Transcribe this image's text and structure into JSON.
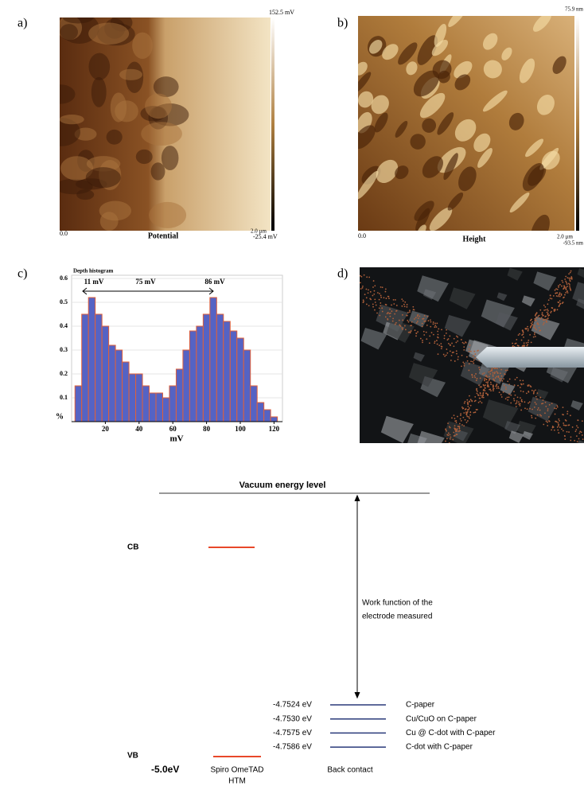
{
  "panels": {
    "a": {
      "label": "a)",
      "scale_max": "152.5 mV",
      "scale_min": "-25.4 mV",
      "x_start": "0.0",
      "x_end": "2.0 µm",
      "caption": "Potential"
    },
    "b": {
      "label": "b)",
      "scale_max": "75.9 nm",
      "scale_min": "-93.5 nm",
      "x_start": "0.0",
      "x_end": "2.0 µm",
      "caption": "Height"
    },
    "c": {
      "label": "c)"
    },
    "d": {
      "label": "d)"
    }
  },
  "chart_data": {
    "type": "histogram",
    "title": "Depth histogram",
    "x_label": "mV",
    "y_label": "%",
    "annotations": [
      "11 mV",
      "75 mV",
      "86 mV"
    ],
    "bins": [
      2,
      6,
      10,
      14,
      18,
      22,
      26,
      30,
      34,
      38,
      42,
      46,
      50,
      54,
      58,
      62,
      66,
      70,
      74,
      78,
      82,
      86,
      90,
      94,
      98,
      102,
      106,
      110,
      114,
      118,
      122
    ],
    "values": [
      0.15,
      0.45,
      0.52,
      0.45,
      0.4,
      0.32,
      0.3,
      0.25,
      0.2,
      0.2,
      0.15,
      0.12,
      0.12,
      0.1,
      0.15,
      0.22,
      0.3,
      0.38,
      0.4,
      0.45,
      0.52,
      0.45,
      0.42,
      0.38,
      0.35,
      0.3,
      0.15,
      0.08,
      0.05,
      0.02
    ],
    "color": "#5563c4",
    "edge_color": "#e0603a",
    "xlim": [
      0,
      125
    ],
    "xticks": [
      20,
      40,
      60,
      80,
      100,
      120
    ],
    "ylim": [
      0,
      0.6
    ],
    "yticks": [
      0.1,
      0.2,
      0.3,
      0.4,
      0.5,
      0.6
    ]
  },
  "energy_diagram": {
    "title": "Vacuum energy level",
    "cb": "CB",
    "vb": "VB",
    "htm_energy": "-5.0eV",
    "htm_name": "Spiro OmeTAD",
    "htm_label": "HTM",
    "work_function_note": [
      "Work function of the",
      "electrode measured"
    ],
    "levels": [
      {
        "energy": "-4.7524 eV",
        "name": "C-paper"
      },
      {
        "energy": "-4.7530 eV",
        "name": "Cu/CuO on C-paper"
      },
      {
        "energy": "-4.7575 eV",
        "name": "Cu @ C-dot with C-paper"
      },
      {
        "energy": "-4.7586 eV",
        "name": "C-dot with C-paper"
      }
    ],
    "back_contact": "Back contact"
  }
}
